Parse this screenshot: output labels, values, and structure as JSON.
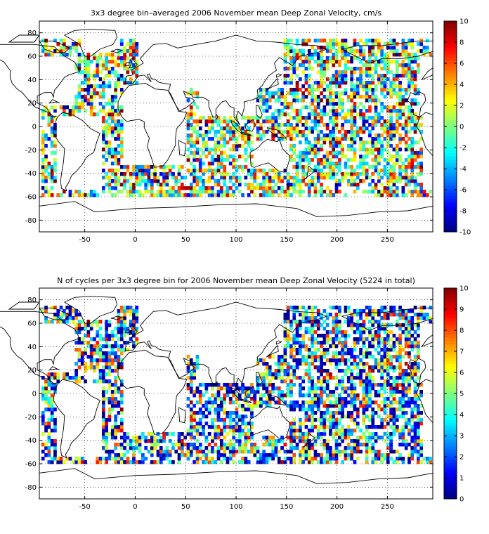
{
  "chart_data": [
    {
      "type": "heatmap",
      "title": "3x3 degree bin–averaged 2006 November mean Deep Zonal Velocity, cm/s",
      "xlabel": "",
      "ylabel": "",
      "xlim": [
        -95,
        295
      ],
      "ylim": [
        -90,
        90
      ],
      "xticks": [
        -50,
        0,
        50,
        100,
        150,
        200,
        250
      ],
      "yticks": [
        80,
        60,
        40,
        20,
        0,
        -20,
        -40,
        -60,
        -80
      ],
      "grid": "dotted",
      "colorbar": {
        "placement": "right",
        "range": [
          -10,
          10
        ],
        "ticks": [
          10,
          8,
          6,
          4,
          2,
          0,
          -2,
          -4,
          -6,
          -8,
          -10
        ],
        "colormap": "jet"
      },
      "bin_size_deg": 3
    },
    {
      "type": "heatmap",
      "title": "N of cycles per 3x3 degree bin for 2006 November mean Deep Zonal Velocity (5224 in total)",
      "xlabel": "",
      "ylabel": "",
      "xlim": [
        -95,
        295
      ],
      "ylim": [
        -90,
        90
      ],
      "xticks": [
        -50,
        0,
        50,
        100,
        150,
        200,
        250
      ],
      "yticks": [
        80,
        60,
        40,
        20,
        0,
        -20,
        -40,
        -60,
        -80
      ],
      "grid": "dotted",
      "colorbar": {
        "placement": "right",
        "range": [
          0,
          10
        ],
        "ticks": [
          10,
          9,
          8,
          7,
          6,
          5,
          4,
          3,
          2,
          1,
          0
        ],
        "colormap": "jet"
      },
      "bin_size_deg": 3,
      "total_cycles": 5224
    }
  ]
}
